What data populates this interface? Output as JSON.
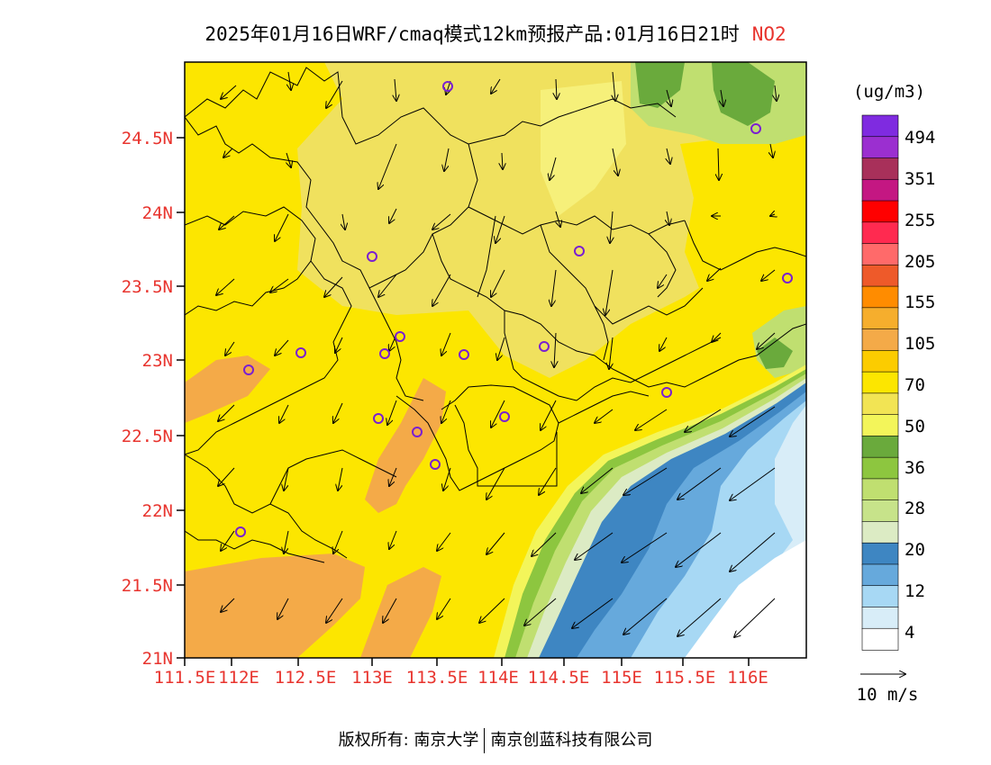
{
  "title": {
    "main": "2025年01月16日WRF/cmaq模式12km预报产品:01月16日21时",
    "pollutant": "NO2"
  },
  "map": {
    "lat_labels": [
      "24.5N",
      "24N",
      "23.5N",
      "23N",
      "22.5N",
      "22N",
      "21.5N",
      "21N"
    ],
    "lon_labels": [
      "111.5E",
      "112E",
      "112.5E",
      "113E",
      "113.5E",
      "114E",
      "114.5E",
      "115E",
      "115.5E",
      "116E"
    ]
  },
  "colorbar": {
    "unit": "(ug/m3)",
    "labels": [
      "494",
      "351",
      "255",
      "205",
      "155",
      "105",
      "70",
      "50",
      "36",
      "28",
      "20",
      "12",
      "4"
    ],
    "colors": [
      "#7f2be0",
      "#9b2fd0",
      "#a8305a",
      "#c41782",
      "#ff0000",
      "#ff2a50",
      "#ff6a6a",
      "#ee5a2a",
      "#ff8c00",
      "#f6ae2d",
      "#f4aa48",
      "#fccc00",
      "#fce600",
      "#f2e454",
      "#f3f55a",
      "#6aaa3c",
      "#8dc63f",
      "#c0df70",
      "#c7e38a",
      "#dcebc4",
      "#3e86c2",
      "#66a9dc",
      "#a7d8f4",
      "#d8edf8",
      "#ffffff"
    ]
  },
  "wind_scale": {
    "label": "10 m/s"
  },
  "footer": {
    "left": "版权所有: 南京大学",
    "right": "南京创蓝科技有限公司"
  }
}
